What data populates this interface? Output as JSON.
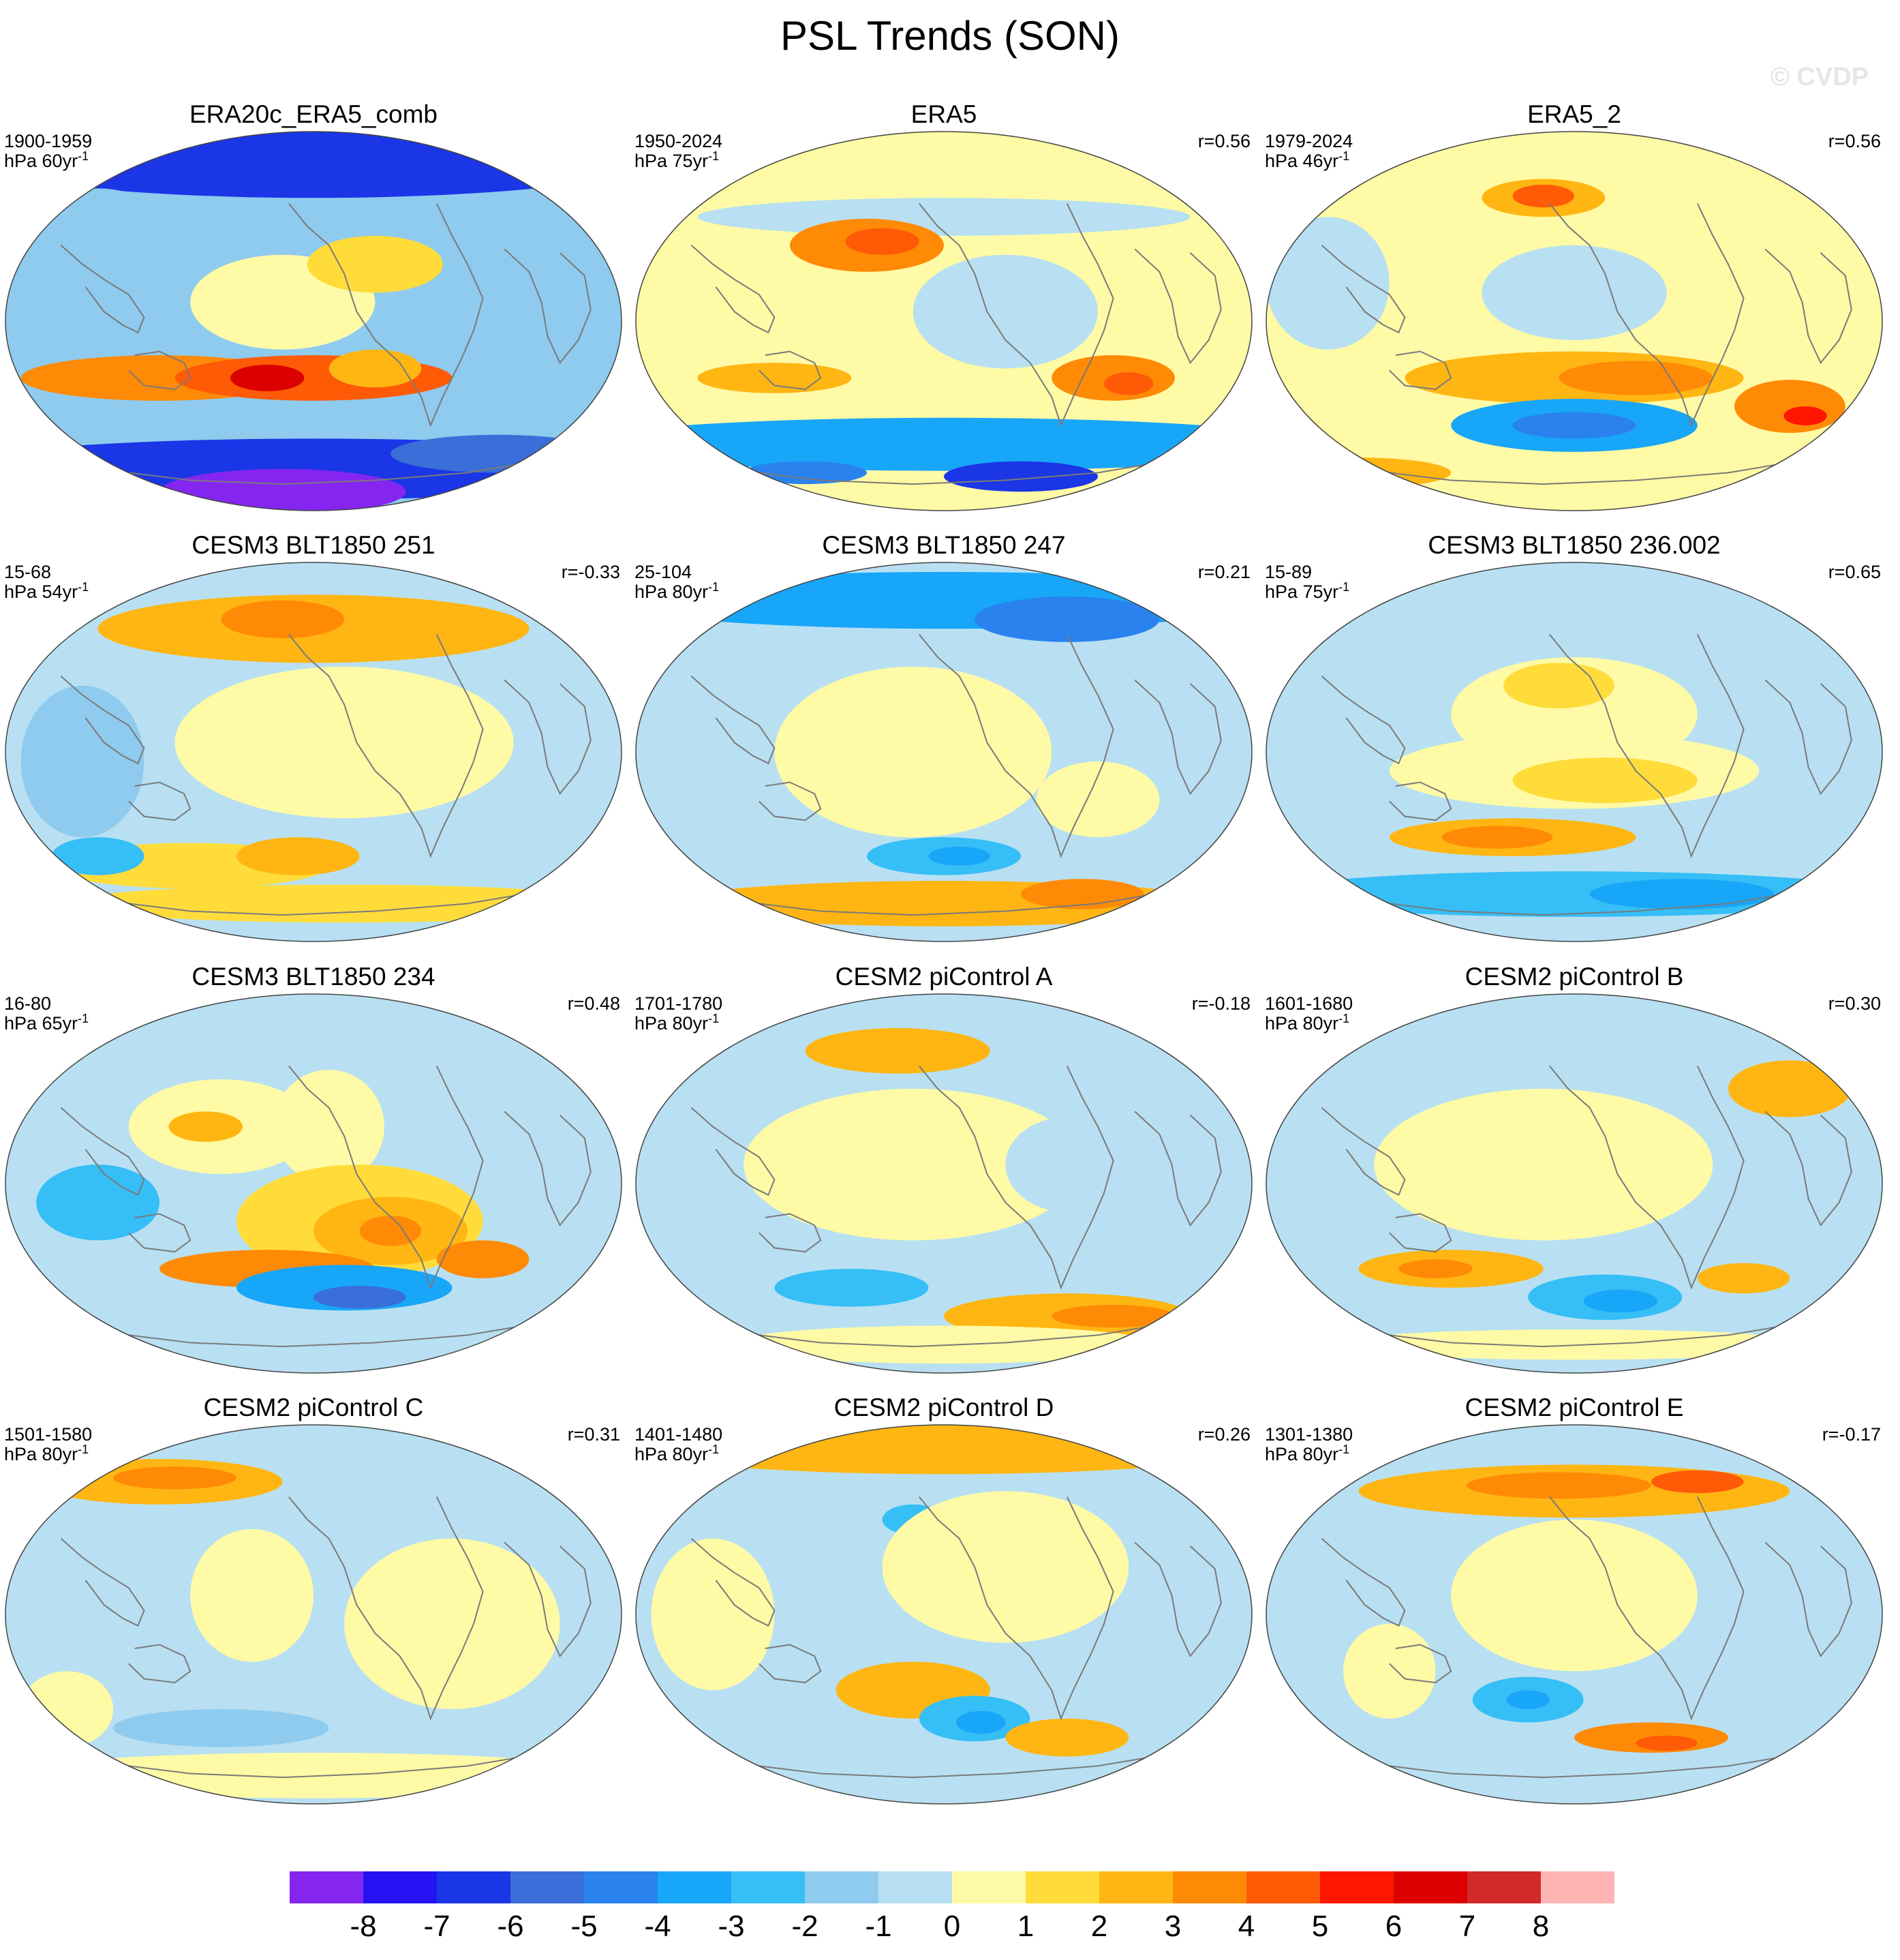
{
  "page": {
    "title": "PSL Trends (SON)",
    "watermark": "© CVDP"
  },
  "chart_data": {
    "type": "contour-map-grid",
    "title": "PSL Trends (SON)",
    "units": "hPa",
    "projection": "Robinson (Pacific-centered)",
    "colorbar": {
      "ticks": [
        "-8",
        "-7",
        "-6",
        "-5",
        "-4",
        "-3",
        "-2",
        "-1",
        "0",
        "1",
        "2",
        "3",
        "4",
        "5",
        "6",
        "7",
        "8"
      ],
      "colors": [
        "#8426f0",
        "#2412f4",
        "#1a36e6",
        "#3a6ed8",
        "#2a82ee",
        "#18a6f8",
        "#36bef6",
        "#8ecbee",
        "#b8e0f2",
        "#fffaa6",
        "#ffdc3a",
        "#ffb612",
        "#ff8a06",
        "#ff5a06",
        "#ff1600",
        "#dc0000",
        "#d12a2a",
        "#ffb4b4"
      ]
    },
    "panels": [
      {
        "name": "ERA20c_ERA5_comb",
        "period": "1900-1959",
        "trend_unit": "hPa 60yr",
        "superscript": "-1",
        "r": ""
      },
      {
        "name": "ERA5",
        "period": "1950-2024",
        "trend_unit": "hPa 75yr",
        "superscript": "-1",
        "r": "r=0.56"
      },
      {
        "name": "ERA5_2",
        "period": "1979-2024",
        "trend_unit": "hPa 46yr",
        "superscript": "-1",
        "r": "r=0.56"
      },
      {
        "name": "CESM3 BLT1850 251",
        "period": "15-68",
        "trend_unit": "hPa 54yr",
        "superscript": "-1",
        "r": "r=-0.33"
      },
      {
        "name": "CESM3 BLT1850 247",
        "period": "25-104",
        "trend_unit": "hPa 80yr",
        "superscript": "-1",
        "r": "r=0.21"
      },
      {
        "name": "CESM3 BLT1850 236.002",
        "period": "15-89",
        "trend_unit": "hPa 75yr",
        "superscript": "-1",
        "r": "r=0.65"
      },
      {
        "name": "CESM3 BLT1850 234",
        "period": "16-80",
        "trend_unit": "hPa 65yr",
        "superscript": "-1",
        "r": "r=0.48"
      },
      {
        "name": "CESM2 piControl A",
        "period": "1701-1780",
        "trend_unit": "hPa 80yr",
        "superscript": "-1",
        "r": "r=-0.18"
      },
      {
        "name": "CESM2 piControl B",
        "period": "1601-1680",
        "trend_unit": "hPa 80yr",
        "superscript": "-1",
        "r": "r=0.30"
      },
      {
        "name": "CESM2 piControl C",
        "period": "1501-1580",
        "trend_unit": "hPa 80yr",
        "superscript": "-1",
        "r": "r=0.31"
      },
      {
        "name": "CESM2 piControl D",
        "period": "1401-1480",
        "trend_unit": "hPa 80yr",
        "superscript": "-1",
        "r": "r=0.26"
      },
      {
        "name": "CESM2 piControl E",
        "period": "1301-1380",
        "trend_unit": "hPa 80yr",
        "superscript": "-1",
        "r": "r=-0.17"
      }
    ]
  }
}
